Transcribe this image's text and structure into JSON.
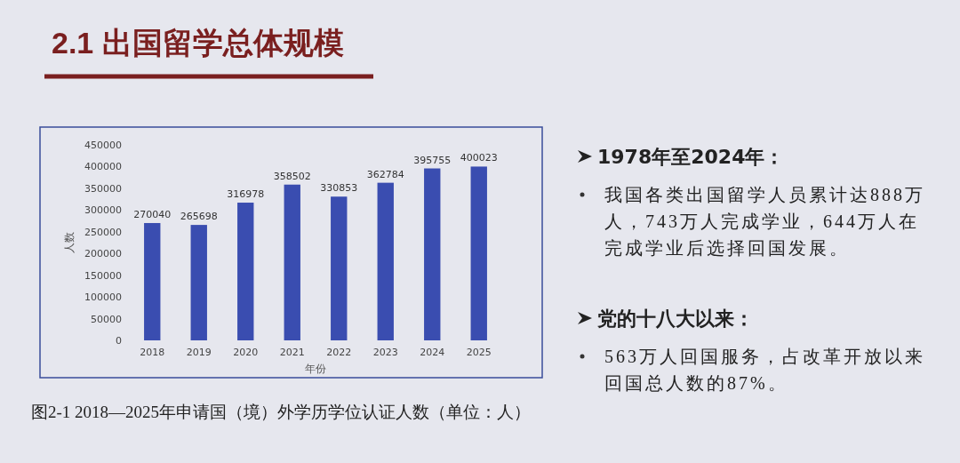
{
  "chart_data": {
    "type": "bar",
    "title": "2.1 出国留学总体规模",
    "xlabel": "年份",
    "ylabel": "人数",
    "categories": [
      "2018",
      "2019",
      "2020",
      "2021",
      "2022",
      "2023",
      "2024",
      "2025"
    ],
    "values": [
      270040,
      265698,
      316978,
      358502,
      330853,
      362784,
      395755,
      400023
    ],
    "color": "#3a4db0",
    "data_labels": true,
    "ylim": [
      0,
      450000
    ],
    "yticks": [
      0,
      50000,
      100000,
      150000,
      200000,
      250000,
      300000,
      350000,
      400000,
      450000
    ],
    "annotations": [
      "图2-1 2018—2025年申请国（境）外学历学位认证人数（单位：人）",
      "1978年至2024年：",
      "我国各类出国留学人员累计达888万人，743万人完成学业，644万人在完成学业后选择回国发展。",
      "党的十八大以来：",
      "563万人回国服务，占改革开放以来回国总人数的87%。"
    ]
  }
}
